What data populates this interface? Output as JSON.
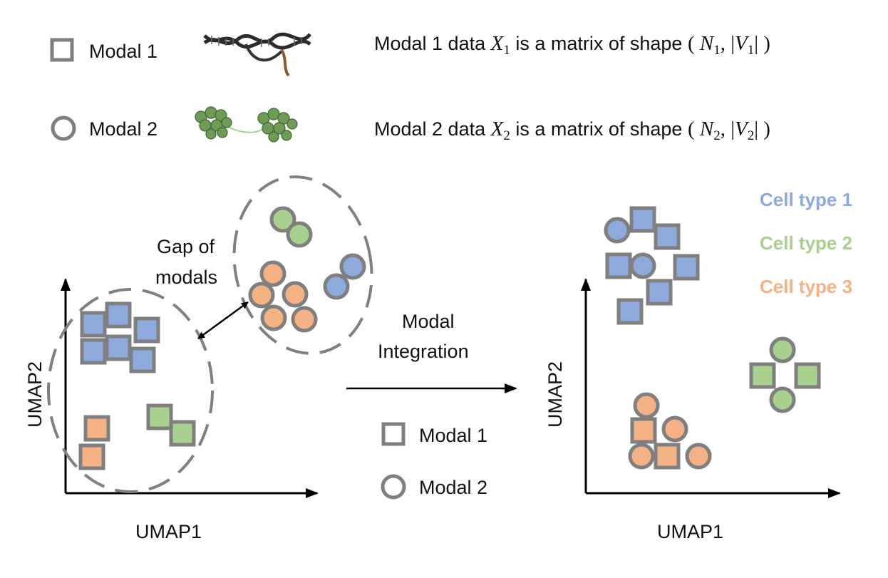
{
  "colors": {
    "cell_type_1": "#8EA9DB",
    "cell_type_2": "#A9D18E",
    "cell_type_3": "#F4B183",
    "outline": "#7F7F7F",
    "dash": "#808080",
    "axis": "#000000"
  },
  "header": {
    "modal1": {
      "label": "Modal 1",
      "shape": "square",
      "icon": "dna-icon",
      "desc_prefix": "Modal 1 data ",
      "var": "X",
      "var_sub": "1",
      "desc_mid": " is a matrix of shape ",
      "shape_n": "N",
      "shape_n_sub": "1",
      "shape_v": "V",
      "shape_v_sub": "1"
    },
    "modal2": {
      "label": "Modal 2",
      "shape": "circle",
      "icon": "chromatin-icon",
      "desc_prefix": "Modal 2 data ",
      "var": "X",
      "var_sub": "2",
      "desc_mid": " is a matrix of shape ",
      "shape_n": "N",
      "shape_n_sub": "2",
      "shape_v": "V",
      "shape_v_sub": "2"
    }
  },
  "annotations": {
    "gap_line1": "Gap of",
    "gap_line2": "modals",
    "integration_line1": "Modal",
    "integration_line2": "Integration"
  },
  "middle_legend": {
    "modal1": "Modal 1",
    "modal2": "Modal 2"
  },
  "cell_type_legend": [
    {
      "label": "Cell type 1",
      "color_key": "cell_type_1"
    },
    {
      "label": "Cell type 2",
      "color_key": "cell_type_2"
    },
    {
      "label": "Cell type 3",
      "color_key": "cell_type_3"
    }
  ],
  "left_plot": {
    "xlabel": "UMAP1",
    "ylabel": "UMAP2"
  },
  "right_plot": {
    "xlabel": "UMAP1",
    "ylabel": "UMAP2"
  }
}
